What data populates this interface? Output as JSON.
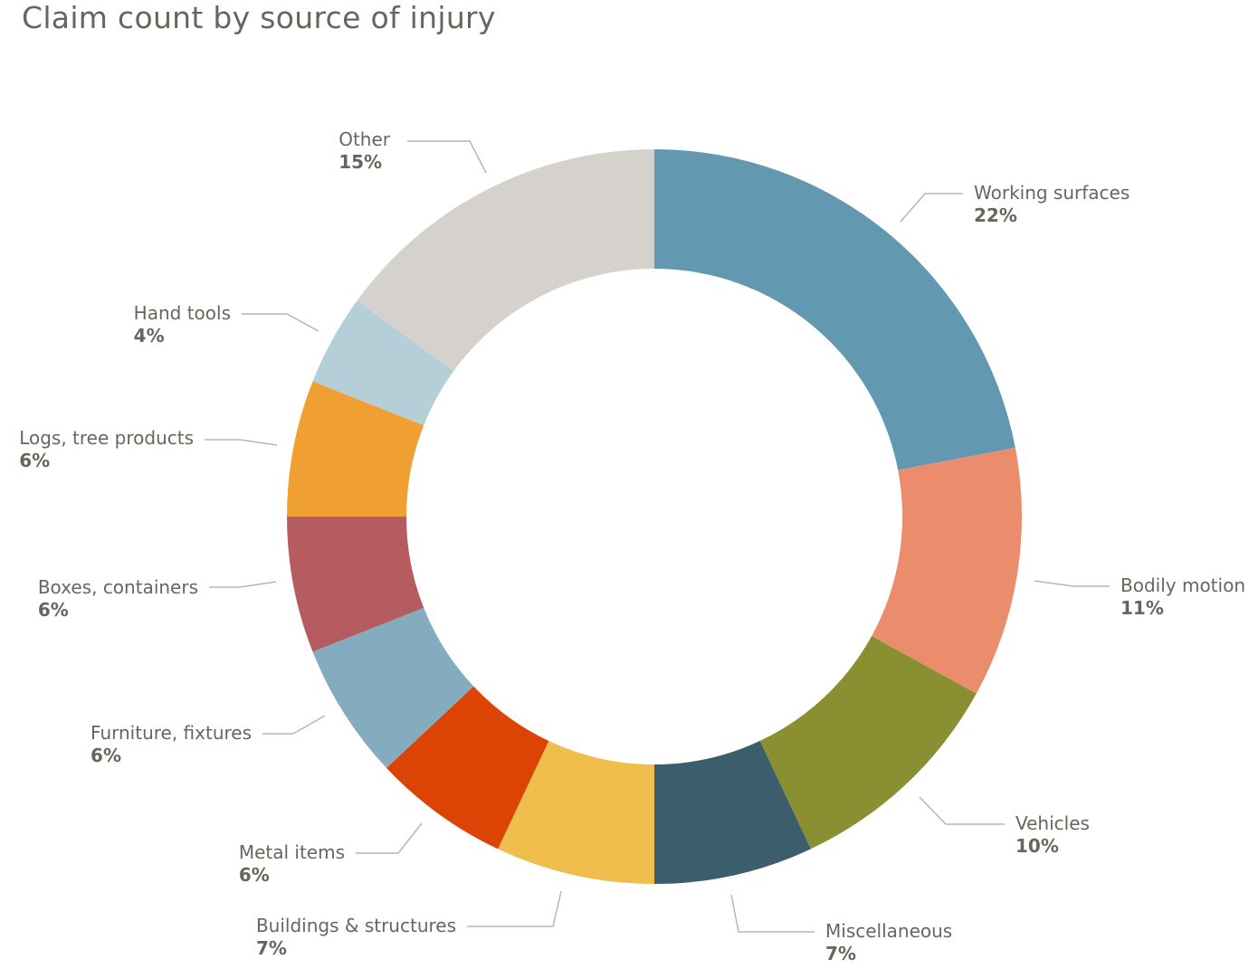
{
  "chart_data": {
    "type": "pie",
    "title": "Claim count by source of injury",
    "slices": [
      {
        "label": "Working surfaces",
        "pct_label": "22%",
        "value": 22,
        "color": "#6399b0"
      },
      {
        "label": "Bodily motion",
        "pct_label": "11%",
        "value": 11,
        "color": "#eb8d6c"
      },
      {
        "label": "Vehicles",
        "pct_label": "10%",
        "value": 10,
        "color": "#8a9032"
      },
      {
        "label": "Miscellaneous",
        "pct_label": "7%",
        "value": 7,
        "color": "#3c5d6b"
      },
      {
        "label": "Buildings & structures",
        "pct_label": "7%",
        "value": 7,
        "color": "#f0be4c"
      },
      {
        "label": "Metal items",
        "pct_label": "6%",
        "value": 6,
        "color": "#dc4405"
      },
      {
        "label": "Furniture, fixtures",
        "pct_label": "6%",
        "value": 6,
        "color": "#85acbe"
      },
      {
        "label": "Boxes, containers",
        "pct_label": "6%",
        "value": 6,
        "color": "#b55c61"
      },
      {
        "label": "Logs, tree products",
        "pct_label": "6%",
        "value": 6,
        "color": "#f0a033"
      },
      {
        "label": "Hand tools",
        "pct_label": "4%",
        "value": 4,
        "color": "#b4cfd8"
      },
      {
        "label": "Other",
        "pct_label": "15%",
        "value": 15,
        "color": "#d5d2ce"
      }
    ]
  }
}
